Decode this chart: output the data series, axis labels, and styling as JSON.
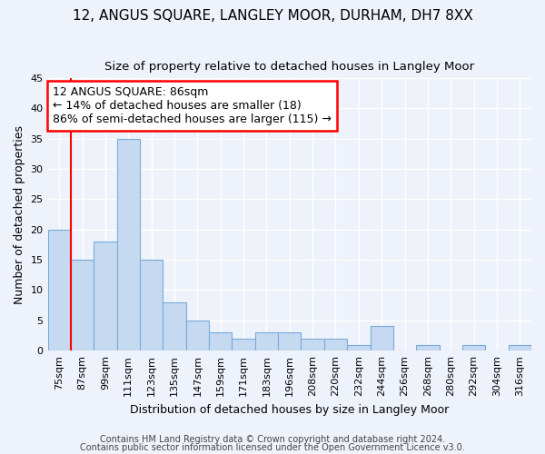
{
  "title": "12, ANGUS SQUARE, LANGLEY MOOR, DURHAM, DH7 8XX",
  "subtitle": "Size of property relative to detached houses in Langley Moor",
  "xlabel": "Distribution of detached houses by size in Langley Moor",
  "ylabel": "Number of detached properties",
  "categories": [
    "75sqm",
    "87sqm",
    "99sqm",
    "111sqm",
    "123sqm",
    "135sqm",
    "147sqm",
    "159sqm",
    "171sqm",
    "183sqm",
    "196sqm",
    "208sqm",
    "220sqm",
    "232sqm",
    "244sqm",
    "256sqm",
    "268sqm",
    "280sqm",
    "292sqm",
    "304sqm",
    "316sqm"
  ],
  "values": [
    20,
    15,
    18,
    35,
    15,
    8,
    5,
    3,
    2,
    3,
    3,
    2,
    2,
    1,
    4,
    0,
    1,
    0,
    1,
    0,
    1
  ],
  "bar_color": "#c5d9f0",
  "bar_edge_color": "#7aabda",
  "annotation_line1": "12 ANGUS SQUARE: 86sqm",
  "annotation_line2": "← 14% of detached houses are smaller (18)",
  "annotation_line3": "86% of semi-detached houses are larger (115) →",
  "annotation_box_color": "white",
  "annotation_box_edge": "red",
  "vline_color": "red",
  "vline_x_index": 0.5,
  "ylim": [
    0,
    45
  ],
  "yticks": [
    0,
    5,
    10,
    15,
    20,
    25,
    30,
    35,
    40,
    45
  ],
  "footer1": "Contains HM Land Registry data © Crown copyright and database right 2024.",
  "footer2": "Contains public sector information licensed under the Open Government Licence v3.0.",
  "bg_color": "#eef2fa",
  "plot_bg_color": "#eef2fa",
  "grid_color": "white",
  "title_fontsize": 11,
  "subtitle_fontsize": 9.5,
  "axis_label_fontsize": 9,
  "tick_fontsize": 8,
  "annotation_fontsize": 9,
  "footer_fontsize": 7
}
